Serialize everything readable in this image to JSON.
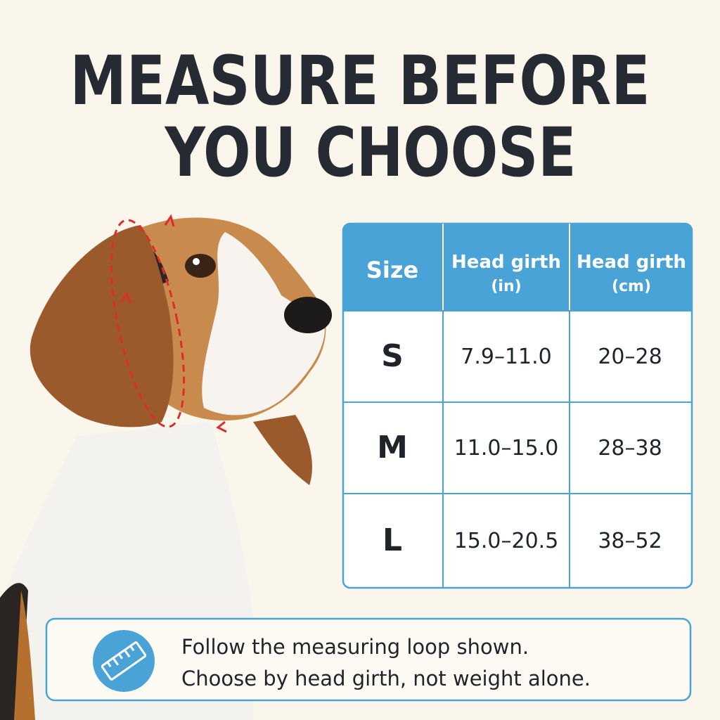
{
  "title": {
    "lines": [
      "MEASURE BEFORE",
      "YOU CHOOSE"
    ]
  },
  "table": {
    "header": [
      {
        "label": "Size"
      },
      {
        "label": "Head girth",
        "unit": "(in)"
      },
      {
        "label": "Head girth",
        "unit": "(cm)"
      }
    ],
    "rows": [
      [
        "S",
        "7.9–11.0",
        "20–28"
      ],
      [
        "M",
        "11.0–15.0",
        "28–38"
      ],
      [
        "L",
        "15.0–20.5",
        "38–52"
      ]
    ]
  },
  "note": {
    "lines": [
      "Follow the measuring loop shown.",
      "Choose by head girth, not weight alone."
    ]
  }
}
